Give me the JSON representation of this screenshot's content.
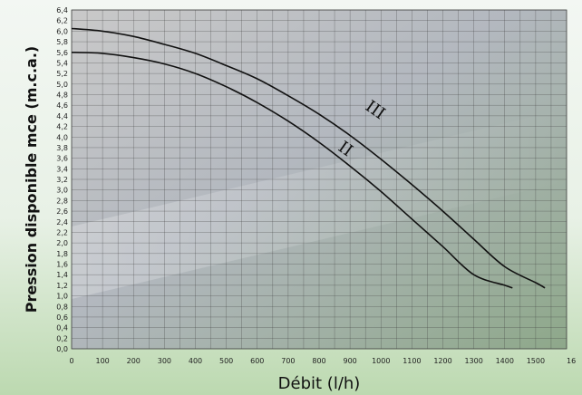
{
  "chart_data": {
    "type": "line",
    "title": "",
    "xlabel": "Débit (l/h)",
    "ylabel": "Pression disponible mce (m.c.a.)",
    "xlim": [
      0,
      1600
    ],
    "ylim": [
      0,
      6.4
    ],
    "x_ticks": [
      "0",
      "100",
      "200",
      "300",
      "400",
      "500",
      "600",
      "700",
      "800",
      "900",
      "1000",
      "1100",
      "1200",
      "1300",
      "1400",
      "1500",
      "16"
    ],
    "y_ticks": [
      "0,0",
      "0,2",
      "0,4",
      "0,6",
      "0,8",
      "1,0",
      "1,2",
      "1,4",
      "1,6",
      "1,8",
      "2,0",
      "2,2",
      "2,4",
      "2,6",
      "2,8",
      "3,0",
      "3,2",
      "3,4",
      "3,6",
      "3,8",
      "4,0",
      "4,2",
      "4,4",
      "4,6",
      "4,8",
      "5,0",
      "5,2",
      "5,4",
      "5,6",
      "5,8",
      "6,0",
      "6,2",
      "6,4"
    ],
    "grid": true,
    "series": [
      {
        "name": "III",
        "x": [
          0,
          100,
          200,
          300,
          400,
          500,
          600,
          700,
          800,
          900,
          1000,
          1100,
          1200,
          1300,
          1400,
          1500,
          1530
        ],
        "y": [
          6.05,
          6.0,
          5.9,
          5.75,
          5.58,
          5.35,
          5.1,
          4.78,
          4.43,
          4.03,
          3.58,
          3.1,
          2.6,
          2.07,
          1.55,
          1.25,
          1.15
        ]
      },
      {
        "name": "II",
        "x": [
          0,
          100,
          200,
          300,
          400,
          500,
          600,
          700,
          800,
          900,
          1000,
          1100,
          1200,
          1300,
          1400,
          1425
        ],
        "y": [
          5.6,
          5.58,
          5.5,
          5.38,
          5.2,
          4.95,
          4.65,
          4.3,
          3.9,
          3.45,
          2.97,
          2.45,
          1.93,
          1.4,
          1.2,
          1.15
        ]
      }
    ]
  }
}
